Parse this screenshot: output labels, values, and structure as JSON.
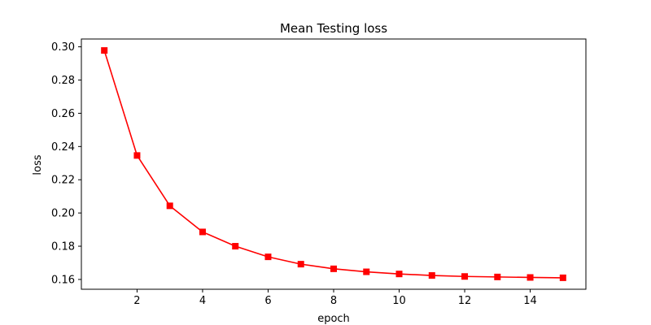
{
  "chart_data": {
    "type": "line",
    "title": "Mean Testing loss",
    "xlabel": "epoch",
    "ylabel": "loss",
    "x": [
      1,
      2,
      3,
      4,
      5,
      6,
      7,
      8,
      9,
      10,
      11,
      12,
      13,
      14,
      15
    ],
    "series": [
      {
        "values": [
          0.2978,
          0.2346,
          0.2043,
          0.1886,
          0.18,
          0.1736,
          0.1692,
          0.1664,
          0.1646,
          0.1633,
          0.1624,
          0.1618,
          0.1615,
          0.1612,
          0.161
        ],
        "color": "#ff0000",
        "marker": "square"
      }
    ],
    "xlim": [
      0.3,
      15.7
    ],
    "ylim": [
      0.1541,
      0.3047
    ],
    "xticks": [
      2,
      4,
      6,
      8,
      10,
      12,
      14
    ],
    "xtick_labels": [
      "2",
      "4",
      "6",
      "8",
      "10",
      "12",
      "14"
    ],
    "yticks": [
      0.16,
      0.18,
      0.2,
      0.22,
      0.24,
      0.26,
      0.28,
      0.3
    ],
    "ytick_labels": [
      "0.16",
      "0.18",
      "0.20",
      "0.22",
      "0.24",
      "0.26",
      "0.28",
      "0.30"
    ],
    "grid": false,
    "legend": false,
    "frame_color": "#000000"
  }
}
